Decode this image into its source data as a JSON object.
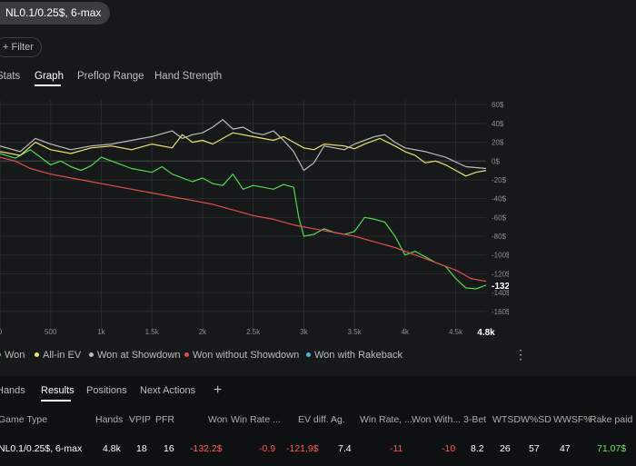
{
  "header": {
    "filter_pill": "NL0.1/0.25$, 6-max",
    "filter_button": "+ Filter"
  },
  "view_tabs": [
    "Stats",
    "Graph",
    "Preflop Range",
    "Hand Strength"
  ],
  "active_view_tab": "Graph",
  "chart_data": {
    "type": "line",
    "x_ticks": [
      "0",
      "500",
      "1k",
      "1.5k",
      "2k",
      "2.5k",
      "3k",
      "3.5k",
      "4k",
      "4.5k"
    ],
    "x_end_label": "4.8k",
    "x_range": [
      0,
      4800
    ],
    "y_ticks": [
      "60$",
      "40$",
      "20$",
      "0$",
      "-20$",
      "-40$",
      "-60$",
      "-80$",
      "-100$",
      "-120$",
      "-140$",
      "-160$"
    ],
    "y_range": [
      -165,
      65
    ],
    "end_value_label": "-132.2$",
    "series": [
      {
        "name": "Won",
        "color": "#4ddc52",
        "points": [
          [
            0,
            8
          ],
          [
            150,
            3
          ],
          [
            300,
            12
          ],
          [
            400,
            4
          ],
          [
            500,
            -4
          ],
          [
            600,
            0
          ],
          [
            700,
            -6
          ],
          [
            800,
            -10
          ],
          [
            900,
            -5
          ],
          [
            1000,
            4
          ],
          [
            1150,
            -2
          ],
          [
            1300,
            -8
          ],
          [
            1500,
            -12
          ],
          [
            1600,
            -6
          ],
          [
            1700,
            -14
          ],
          [
            1900,
            -22
          ],
          [
            2000,
            -18
          ],
          [
            2100,
            -24
          ],
          [
            2200,
            -26
          ],
          [
            2300,
            -14
          ],
          [
            2400,
            -30
          ],
          [
            2500,
            -26
          ],
          [
            2600,
            -28
          ],
          [
            2700,
            -30
          ],
          [
            2800,
            -25
          ],
          [
            2900,
            -28
          ],
          [
            2950,
            -60
          ],
          [
            3000,
            -80
          ],
          [
            3100,
            -78
          ],
          [
            3200,
            -72
          ],
          [
            3300,
            -76
          ],
          [
            3400,
            -78
          ],
          [
            3500,
            -75
          ],
          [
            3600,
            -60
          ],
          [
            3700,
            -62
          ],
          [
            3800,
            -65
          ],
          [
            3900,
            -80
          ],
          [
            4000,
            -100
          ],
          [
            4100,
            -96
          ],
          [
            4200,
            -102
          ],
          [
            4300,
            -108
          ],
          [
            4400,
            -112
          ],
          [
            4500,
            -125
          ],
          [
            4600,
            -135
          ],
          [
            4700,
            -136
          ],
          [
            4800,
            -132
          ]
        ]
      },
      {
        "name": "All-in EV",
        "color": "#e8e56a",
        "points": [
          [
            0,
            10
          ],
          [
            200,
            6
          ],
          [
            350,
            20
          ],
          [
            500,
            12
          ],
          [
            700,
            8
          ],
          [
            900,
            14
          ],
          [
            1100,
            16
          ],
          [
            1300,
            12
          ],
          [
            1500,
            18
          ],
          [
            1700,
            14
          ],
          [
            1800,
            28
          ],
          [
            1900,
            20
          ],
          [
            2000,
            22
          ],
          [
            2100,
            18
          ],
          [
            2200,
            24
          ],
          [
            2300,
            30
          ],
          [
            2500,
            26
          ],
          [
            2700,
            22
          ],
          [
            2800,
            26
          ],
          [
            2900,
            20
          ],
          [
            3000,
            14
          ],
          [
            3100,
            12
          ],
          [
            3200,
            18
          ],
          [
            3400,
            16
          ],
          [
            3500,
            13
          ],
          [
            3600,
            18
          ],
          [
            3750,
            24
          ],
          [
            3900,
            16
          ],
          [
            4000,
            10
          ],
          [
            4100,
            6
          ],
          [
            4200,
            -2
          ],
          [
            4300,
            0
          ],
          [
            4400,
            -4
          ],
          [
            4500,
            -10
          ],
          [
            4600,
            -16
          ],
          [
            4700,
            -12
          ],
          [
            4800,
            -10
          ]
        ]
      },
      {
        "name": "Won at Showdown",
        "color": "#bdbdbd",
        "points": [
          [
            0,
            16
          ],
          [
            200,
            10
          ],
          [
            350,
            24
          ],
          [
            500,
            18
          ],
          [
            700,
            12
          ],
          [
            900,
            16
          ],
          [
            1100,
            18
          ],
          [
            1300,
            22
          ],
          [
            1500,
            26
          ],
          [
            1700,
            32
          ],
          [
            1800,
            24
          ],
          [
            1900,
            28
          ],
          [
            2000,
            30
          ],
          [
            2100,
            36
          ],
          [
            2200,
            44
          ],
          [
            2300,
            34
          ],
          [
            2400,
            36
          ],
          [
            2500,
            30
          ],
          [
            2600,
            28
          ],
          [
            2700,
            32
          ],
          [
            2800,
            22
          ],
          [
            2900,
            10
          ],
          [
            3000,
            -10
          ],
          [
            3100,
            -2
          ],
          [
            3200,
            16
          ],
          [
            3400,
            12
          ],
          [
            3500,
            18
          ],
          [
            3600,
            22
          ],
          [
            3700,
            26
          ],
          [
            3800,
            28
          ],
          [
            3900,
            20
          ],
          [
            4000,
            14
          ],
          [
            4200,
            10
          ],
          [
            4400,
            4
          ],
          [
            4600,
            -6
          ],
          [
            4800,
            -8
          ]
        ]
      },
      {
        "name": "Won without Showdown",
        "color": "#e04e4e",
        "points": [
          [
            0,
            4
          ],
          [
            150,
            0
          ],
          [
            300,
            -8
          ],
          [
            500,
            -14
          ],
          [
            700,
            -18
          ],
          [
            900,
            -22
          ],
          [
            1100,
            -26
          ],
          [
            1300,
            -30
          ],
          [
            1500,
            -34
          ],
          [
            1700,
            -38
          ],
          [
            1900,
            -42
          ],
          [
            2100,
            -46
          ],
          [
            2300,
            -52
          ],
          [
            2500,
            -58
          ],
          [
            2700,
            -62
          ],
          [
            2900,
            -68
          ],
          [
            3100,
            -72
          ],
          [
            3300,
            -76
          ],
          [
            3500,
            -80
          ],
          [
            3700,
            -86
          ],
          [
            3900,
            -92
          ],
          [
            4100,
            -100
          ],
          [
            4300,
            -108
          ],
          [
            4500,
            -116
          ],
          [
            4650,
            -125
          ],
          [
            4800,
            -128
          ]
        ]
      }
    ]
  },
  "legend": [
    {
      "label": "Won",
      "color": "#4ddc52"
    },
    {
      "label": "All-in EV",
      "color": "#e8e56a"
    },
    {
      "label": "Won at Showdown",
      "color": "#bdbdbd"
    },
    {
      "label": "Won without Showdown",
      "color": "#e04e4e"
    },
    {
      "label": "Won with Rakeback",
      "color": "#38b7d6"
    }
  ],
  "kebab_label": "⋮",
  "results_tabs": [
    "Hands",
    "Results",
    "Positions",
    "Next Actions"
  ],
  "active_results_tab": "Results",
  "add_tab_label": "+",
  "table": {
    "headers": [
      "Game Type",
      "Hands",
      "VPIP",
      "PFR",
      "Won",
      "Win Rate ...",
      "EV diff.",
      "Ag.",
      "Win Rate, ...",
      "Won With...",
      "3-Bet",
      "WTSD",
      "W%SD",
      "WWSF%",
      "Rake paid"
    ],
    "row": [
      "NL0.1/0.25$, 6-max",
      "4.8k",
      "18",
      "16",
      "-132.2$",
      "-0.9",
      "-121.9$",
      "7.4",
      "-11",
      "-10",
      "8.2",
      "26",
      "57",
      "47",
      "71.07$"
    ]
  }
}
